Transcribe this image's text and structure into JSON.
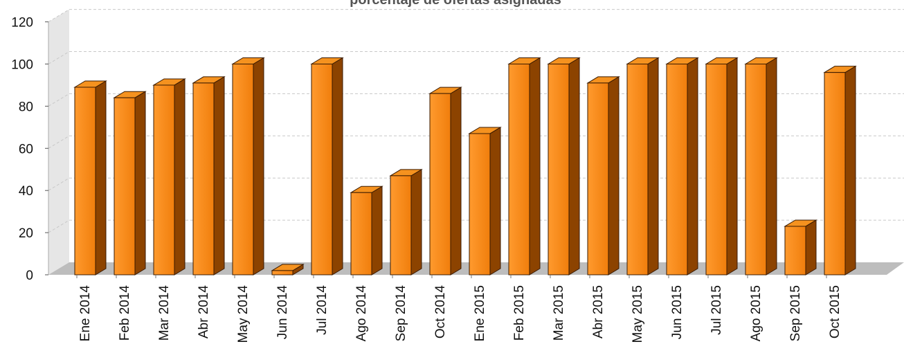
{
  "chart_data": {
    "type": "bar",
    "style": "3d-column",
    "title": "porcentaje de ofertas asignadas",
    "xlabel": "",
    "ylabel": "",
    "ylim": [
      0,
      120
    ],
    "yticks": [
      0,
      20,
      40,
      60,
      80,
      100,
      120
    ],
    "grid": true,
    "legend": "none",
    "categories": [
      "Ene 2014",
      "Feb 2014",
      "Mar 2014",
      "Abr 2014",
      "May 2014",
      "Jun 2014",
      "Jul 2014",
      "Ago 2014",
      "Sep 2014",
      "Oct 2014",
      "Ene 2015",
      "Feb 2015",
      "Mar 2015",
      "Abr 2015",
      "May 2015",
      "Jun 2015",
      "Jul 2015",
      "Ago 2015",
      "Sep 2015",
      "Oct 2015"
    ],
    "values": [
      89,
      84,
      90,
      91,
      100,
      2,
      100,
      39,
      47,
      86,
      67,
      100,
      100,
      91,
      100,
      100,
      100,
      100,
      23,
      96
    ],
    "colors": {
      "bar_front": "#f07e0c",
      "bar_front_light": "#ff9a2e",
      "bar_top": "#f5921f",
      "bar_side": "#8c4300",
      "bar_outline": "#3a1a00",
      "floor": "#bdbdbd",
      "wall": "#e6e6e6",
      "gridline": "#c8c8c8"
    }
  }
}
